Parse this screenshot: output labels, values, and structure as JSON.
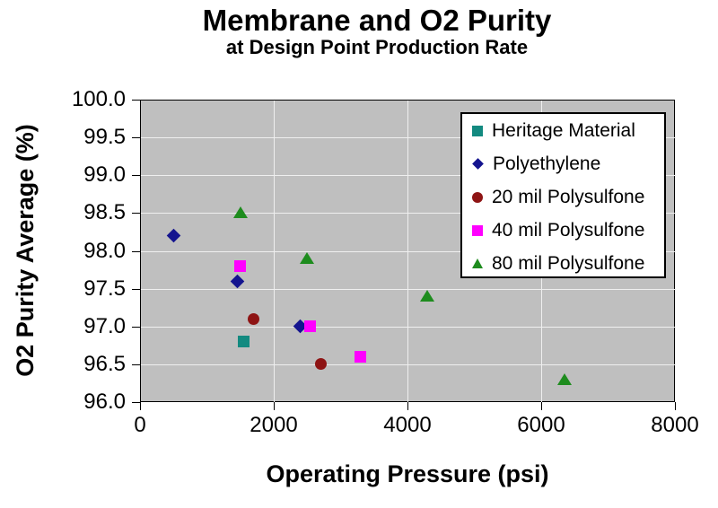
{
  "chart_data": {
    "type": "scatter",
    "title": "Membrane and O2 Purity",
    "subtitle": "at Design Point Production Rate",
    "xlabel": "Operating Pressure (psi)",
    "ylabel": "O2 Purity Average (%)",
    "xlim": [
      0,
      8000
    ],
    "ylim": [
      96.0,
      100.0
    ],
    "x_ticks": [
      "0",
      "2000",
      "4000",
      "6000",
      "8000"
    ],
    "y_ticks": [
      "100.0",
      "99.5",
      "99.0",
      "98.5",
      "98.0",
      "97.5",
      "97.0",
      "96.5",
      "96.0"
    ],
    "grid": true,
    "plot_bg_color": "#bfbfbf",
    "gridline_color": "#efefef",
    "legend_position": "top-right-inside",
    "series": [
      {
        "name": "Heritage Material",
        "marker": "square",
        "color": "#138a80",
        "points": [
          [
            1550,
            96.8
          ]
        ]
      },
      {
        "name": "Polyethylene",
        "marker": "diamond",
        "color": "#14148f",
        "points": [
          [
            500,
            98.2
          ],
          [
            1450,
            97.6
          ],
          [
            2400,
            97.0
          ]
        ]
      },
      {
        "name": "20 mil Polysulfone",
        "marker": "circle",
        "color": "#8e1414",
        "points": [
          [
            1700,
            97.1
          ],
          [
            2700,
            96.5
          ]
        ]
      },
      {
        "name": "40 mil Polysulfone",
        "marker": "square",
        "color": "#ff00ff",
        "points": [
          [
            1500,
            97.8
          ],
          [
            2550,
            97.0
          ],
          [
            3300,
            96.6
          ]
        ]
      },
      {
        "name": "80 mil Polysulfone",
        "marker": "triangle",
        "color": "#1e8c1e",
        "points": [
          [
            1500,
            98.5
          ],
          [
            2500,
            97.9
          ],
          [
            4300,
            97.4
          ],
          [
            6350,
            96.3
          ]
        ]
      }
    ]
  }
}
